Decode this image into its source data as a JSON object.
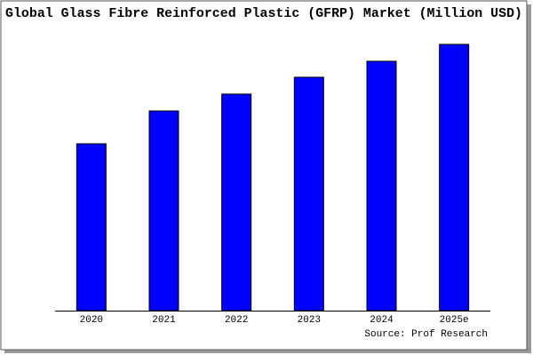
{
  "chart_data": {
    "type": "bar",
    "title": "Global Glass Fibre Reinforced Plastic (GFRP) Market (Million USD)",
    "categories": [
      "2020",
      "2021",
      "2022",
      "2023",
      "2024",
      "2025e"
    ],
    "values": [
      188,
      225,
      244,
      263,
      281,
      300
    ],
    "color": "#0000ff",
    "ylim": [
      0,
      310
    ],
    "source": "Source: Prof Research"
  }
}
